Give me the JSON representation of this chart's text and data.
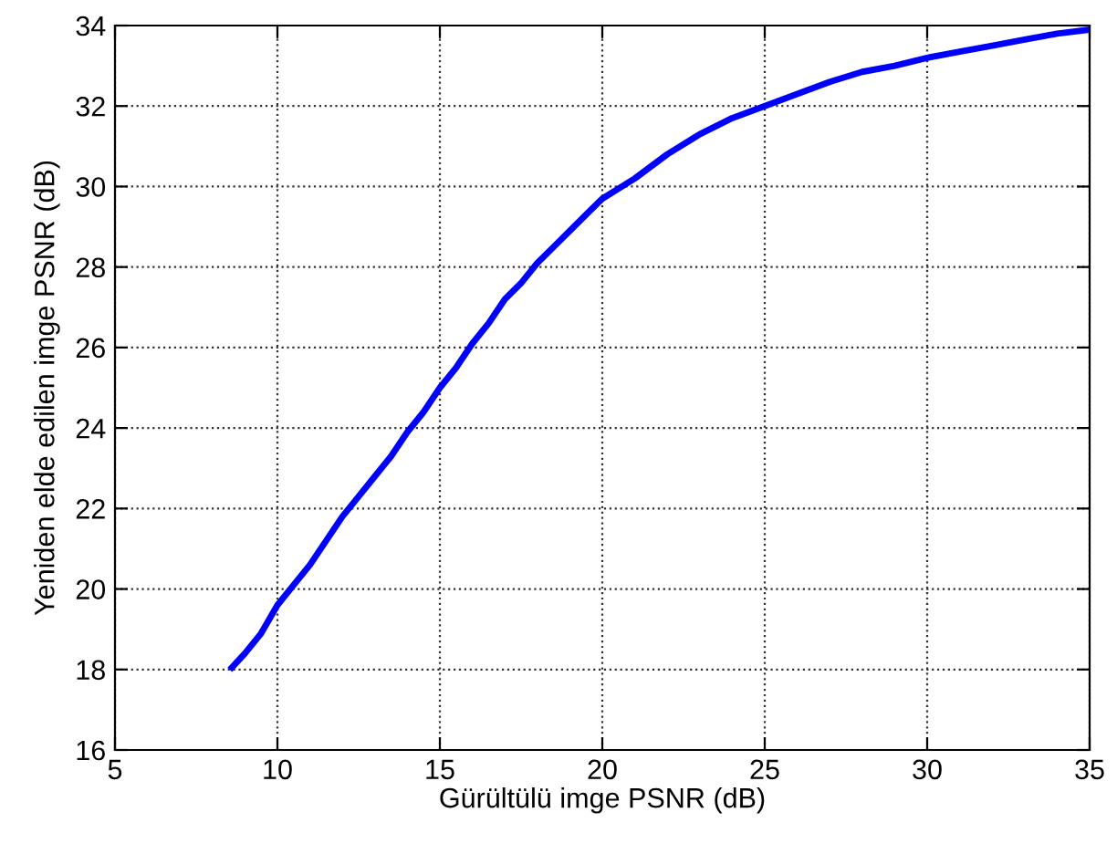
{
  "chart_data": {
    "type": "line",
    "xlabel": "Gürültülü imge PSNR (dB)",
    "ylabel": "Yeniden elde edilen imge PSNR (dB)",
    "series": [
      {
        "color": "#0000ff",
        "x": [
          8.6,
          9.0,
          9.5,
          10,
          10.5,
          11,
          11.5,
          12,
          12.5,
          13,
          13.5,
          14,
          14.5,
          15,
          15.5,
          16,
          16.5,
          17,
          17.5,
          18,
          18.5,
          19,
          19.5,
          20,
          21,
          22,
          23,
          24,
          25,
          26,
          27,
          28,
          29,
          30,
          31,
          32,
          33,
          34,
          35
        ],
        "values": [
          18.05,
          18.4,
          18.9,
          19.6,
          20.1,
          20.6,
          21.2,
          21.8,
          22.3,
          22.8,
          23.3,
          23.9,
          24.4,
          25.0,
          25.5,
          26.1,
          26.6,
          27.2,
          27.6,
          28.1,
          28.5,
          28.9,
          29.3,
          29.7,
          30.2,
          30.8,
          31.3,
          31.7,
          32.0,
          32.3,
          32.6,
          32.85,
          33.0,
          33.2,
          33.35,
          33.5,
          33.65,
          33.8,
          33.9
        ]
      }
    ],
    "xlim": [
      5,
      35
    ],
    "xticks": [
      5,
      10,
      15,
      20,
      25,
      30,
      35
    ],
    "ylim": [
      16,
      34
    ],
    "yticks": [
      16,
      18,
      20,
      22,
      24,
      26,
      28,
      30,
      32,
      34
    ],
    "grid": true,
    "line_style": "solid",
    "marker": "none"
  }
}
